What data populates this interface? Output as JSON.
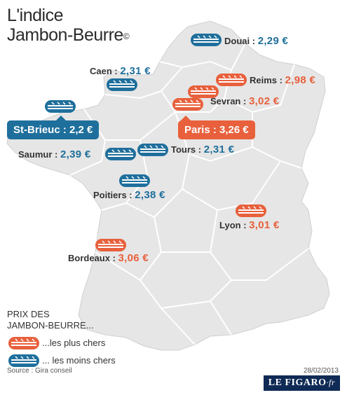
{
  "title_line1": "L'indice",
  "title_line2": "Jambon-Beurre",
  "title_mark": "©",
  "colors": {
    "expensive": "#e8603c",
    "cheap": "#1f6f9c",
    "land": "#e6e6e6",
    "border": "#ffffff"
  },
  "cities": [
    {
      "name": "Douai",
      "price": "2,29 €",
      "kind": "cheap"
    },
    {
      "name": "Caen",
      "price": "2,31 €",
      "kind": "cheap"
    },
    {
      "name": "Reims",
      "price": "2,98 €",
      "kind": "expensive"
    },
    {
      "name": "Sevran",
      "price": "3,02 €",
      "kind": "expensive"
    },
    {
      "name": "Saumur",
      "price": "2,39 €",
      "kind": "cheap"
    },
    {
      "name": "Tours",
      "price": "2,31 €",
      "kind": "cheap"
    },
    {
      "name": "Poitiers",
      "price": "2,38 €",
      "kind": "cheap"
    },
    {
      "name": "Lyon",
      "price": "3,01 €",
      "kind": "expensive"
    },
    {
      "name": "Bordeaux",
      "price": "3,06 €",
      "kind": "expensive"
    }
  ],
  "highlights": {
    "st_brieuc": "St-Brieuc : 2,2 €",
    "paris": "Paris : 3,26 €"
  },
  "legend": {
    "title_line1": "PRIX DES",
    "title_line2": "JAMBON-BEURRE...",
    "expensive_label": "...les plus chers",
    "cheap_label": "... les moins chers",
    "expensive_icon": "sandwich-icon-orange",
    "cheap_icon": "sandwich-icon-blue"
  },
  "source": "Source : Gira conseil",
  "date": "28/02/2013",
  "brand": {
    "main": "LE FIGARO",
    "suffix": "·fr"
  }
}
